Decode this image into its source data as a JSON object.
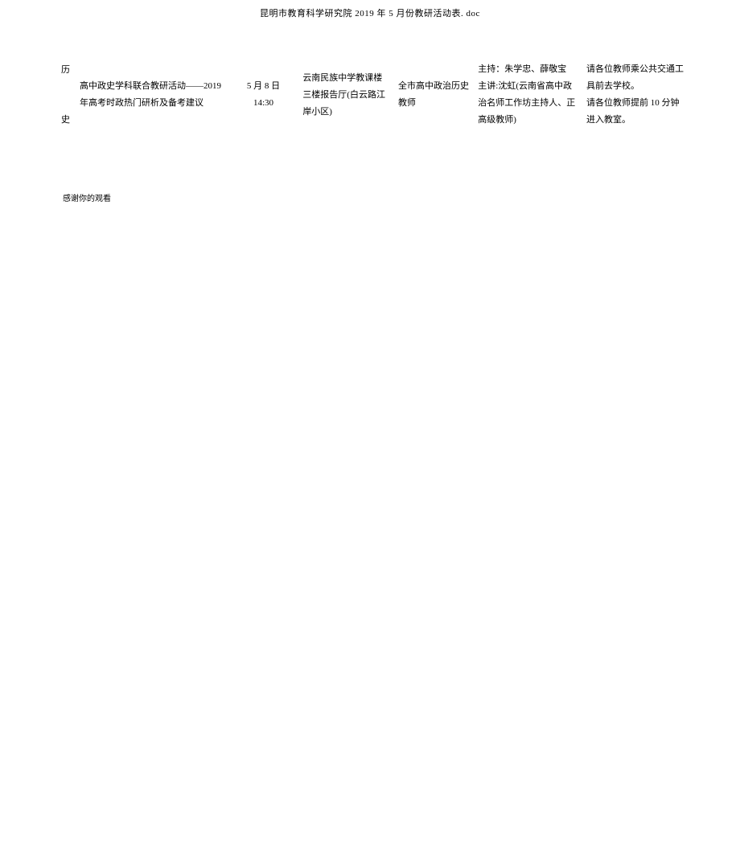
{
  "header": {
    "title": "昆明市教育科学研究院 2019 年 5 月份教研活动表. doc"
  },
  "table": {
    "row": {
      "subject": "历\n\n史",
      "activity": "高中政史学科联合教研活动——2019 年高考时政热门研析及备考建议",
      "date": "5 月 8 日\n14:30",
      "location": "云南民族中学教课楼三楼报告厅(白云路江岸小区)",
      "participants": "全市高中政治历史教师",
      "presenter": "主持：朱学忠、薛敬宝\n主讲:沈虹(云南省高中政治名师工作坊主持人、正高级教师)",
      "notes": "请各位教师乘公共交通工具前去学校。\n请各位教师提前 10 分钟进入教室。"
    }
  },
  "footer": {
    "text": "感谢你的观看"
  }
}
